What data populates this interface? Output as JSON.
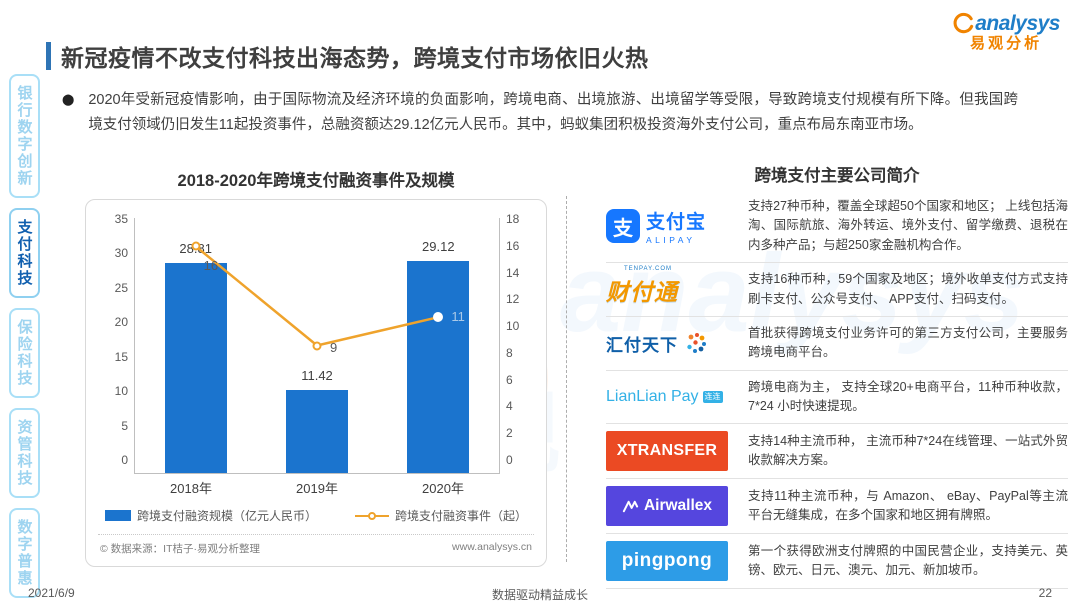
{
  "page": {
    "date": "2021/6/9",
    "footer_center": "数据驱动精益成长",
    "page_number": "22"
  },
  "header": {
    "title": "新冠疫情不改支付科技出海态势，跨境支付市场依旧火热",
    "logo_en": "analysys",
    "logo_cn": "易观分析",
    "accent_color": "#2e74b5"
  },
  "sidebar": {
    "items": [
      {
        "label": "银行数字创新",
        "active": false
      },
      {
        "label": "支付科技",
        "active": true
      },
      {
        "label": "保险科技",
        "active": false
      },
      {
        "label": "资管科技",
        "active": false
      },
      {
        "label": "数字普惠",
        "active": false
      }
    ]
  },
  "bullet": {
    "text": "2020年受新冠疫情影响，由于国际物流及经济环境的负面影响，跨境电商、出境旅游、出境留学等受限，导致跨境支付规模有所下降。但我国跨境支付领域仍旧发生11起投资事件，总融资额达29.12亿元人民币。其中，蚂蚁集团积极投资海外支付公司，重点布局东南亚市场。"
  },
  "chart": {
    "title": "2018-2020年跨境支付融资事件及规模",
    "source": "© 数据来源：IT桔子·易观分析整理",
    "website": "www.analysys.cn"
  },
  "chart_data": {
    "type": "bar+line",
    "categories": [
      "2018年",
      "2019年",
      "2020年"
    ],
    "series": [
      {
        "name": "跨境支付融资规模（亿元人民币）",
        "type": "bar",
        "axis": "left",
        "values": [
          28.81,
          11.42,
          29.12
        ],
        "color": "#1b74ce"
      },
      {
        "name": "跨境支付融资事件（起）",
        "type": "line",
        "axis": "right",
        "values": [
          16,
          9,
          11
        ],
        "color": "#efa32c"
      }
    ],
    "left_axis": {
      "min": 0,
      "max": 35,
      "step": 5
    },
    "right_axis": {
      "min": 0,
      "max": 18,
      "step": 2
    },
    "grid": false,
    "legend_position": "bottom"
  },
  "companies": {
    "title": "跨境支付主要公司简介",
    "rows": [
      {
        "logo": "alipay",
        "logo_text": "支付宝",
        "logo_sub": "ALIPAY",
        "logo_icon_char": "支",
        "brand_color": "#1677ff",
        "desc": "支持27种币种，覆盖全球超50个国家和地区； 上线包括海淘、国际航旅、海外转运、境外支付、留学缴费、退税在内多种产品；与超250家金融机构合作。"
      },
      {
        "logo": "tenpay",
        "logo_text": "财付通",
        "logo_sub": "TENPAY.COM",
        "brand_color": "#f39800",
        "desc": "支持16种币种，59个国家及地区；境外收单支付方式支持刷卡支付、公众号支付、 APP支付、扫码支付。"
      },
      {
        "logo": "huifu",
        "logo_text": "汇付天下",
        "brand_color": "#0f5fa8",
        "desc": "首批获得跨境支付业务许可的第三方支付公司，主要服务跨境电商平台。"
      },
      {
        "logo": "lianlian",
        "logo_text": "LianLian Pay",
        "logo_badge": "连连",
        "brand_color": "#33b1e6",
        "desc": "跨境电商为主， 支持全球20+电商平台，11种币种收款，7*24 小时快速提现。"
      },
      {
        "logo": "xtransfer",
        "logo_text": "XTRANSFER",
        "brand_color": "#eb4a23",
        "desc": "支持14种主流币种， 主流币种7*24在线管理、一站式外贸收款解决方案。"
      },
      {
        "logo": "airwallex",
        "logo_text": "Airwallex",
        "brand_color": "#5546de",
        "desc": "支持11种主流币种，与 Amazon、 eBay、PayPal等主流平台无缝集成，在多个国家和地区拥有牌照。"
      },
      {
        "logo": "pingpong",
        "logo_text": "pingpong",
        "brand_color": "#2d9ce7",
        "desc": "第一个获得欧洲支付牌照的中国民营企业，支持美元、英镑、欧元、日元、澳元、加元、新加坡币。"
      }
    ]
  }
}
